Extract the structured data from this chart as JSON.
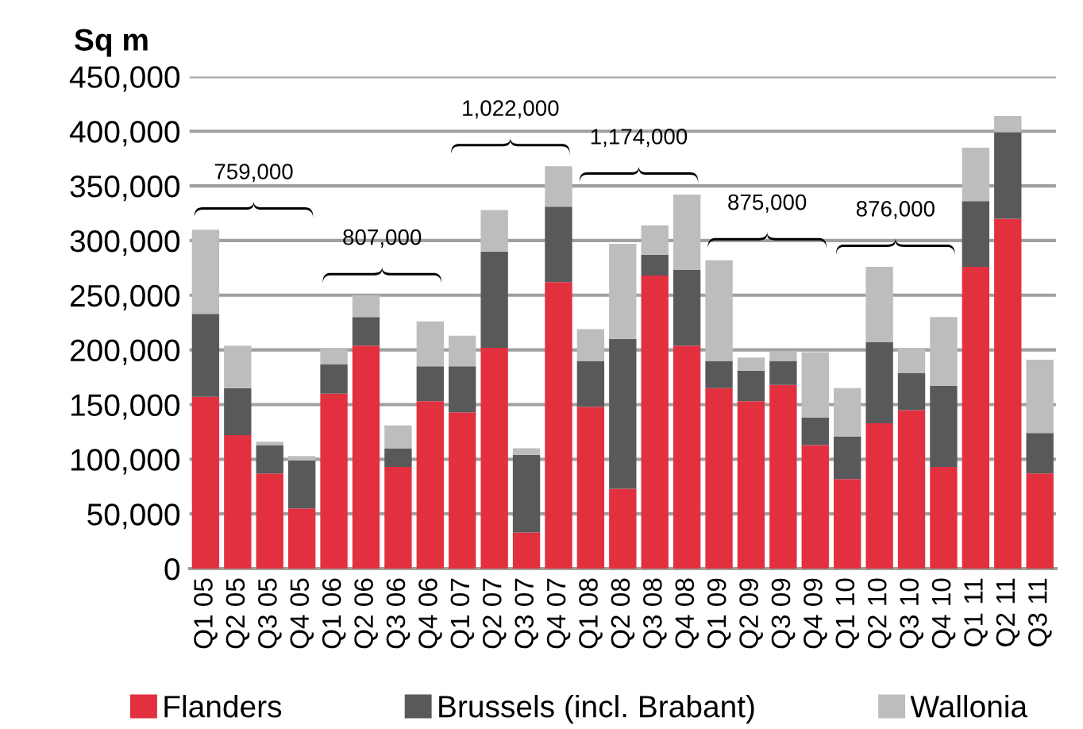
{
  "chart_data": {
    "type": "bar",
    "stacked": true,
    "ylabel": "Sq m",
    "categories": [
      "Q1 05",
      "Q2 05",
      "Q3 05",
      "Q4 05",
      "Q1 06",
      "Q2 06",
      "Q3 06",
      "Q4 06",
      "Q1 07",
      "Q2 07",
      "Q3 07",
      "Q4 07",
      "Q1 08",
      "Q2 08",
      "Q3 08",
      "Q4 08",
      "Q1 09",
      "Q2 09",
      "Q3 09",
      "Q4 09",
      "Q1 10",
      "Q2 10",
      "Q3 10",
      "Q4 10",
      "Q1 11",
      "Q2 11",
      "Q3 11"
    ],
    "series": [
      {
        "name": "Flanders",
        "color": "#e3303f",
        "values": [
          157000,
          122000,
          87000,
          55000,
          160000,
          204000,
          93000,
          153000,
          143000,
          202000,
          33000,
          262000,
          148000,
          73000,
          268000,
          204000,
          165000,
          153000,
          168000,
          113000,
          82000,
          133000,
          145000,
          93000,
          276000,
          320000,
          87000
        ]
      },
      {
        "name": "Brussels (incl. Brabant)",
        "color": "#58595b",
        "values": [
          76000,
          43000,
          26000,
          44000,
          27000,
          26000,
          17000,
          32000,
          42000,
          88000,
          71000,
          69000,
          42000,
          137000,
          19000,
          69000,
          25000,
          28000,
          22000,
          25000,
          39000,
          74000,
          34000,
          74000,
          60000,
          79000,
          37000
        ]
      },
      {
        "name": "Wallonia",
        "color": "#bcbdbf",
        "values": [
          77000,
          39000,
          3000,
          4000,
          15000,
          20000,
          21000,
          41000,
          28000,
          38000,
          6000,
          37000,
          29000,
          87000,
          27000,
          69000,
          92000,
          12000,
          9000,
          60000,
          44000,
          69000,
          23000,
          63000,
          49000,
          15000,
          67000
        ]
      }
    ],
    "ylim": [
      0,
      450000
    ],
    "yticks": [
      {
        "value": 0,
        "label": "0"
      },
      {
        "value": 50000,
        "label": "50,000"
      },
      {
        "value": 100000,
        "label": "100,000"
      },
      {
        "value": 150000,
        "label": "150,000"
      },
      {
        "value": 200000,
        "label": "200,000"
      },
      {
        "value": 250000,
        "label": "250,000"
      },
      {
        "value": 300000,
        "label": "300,000"
      },
      {
        "value": 350000,
        "label": "350,000"
      },
      {
        "value": 400000,
        "label": "400,000"
      },
      {
        "value": 450000,
        "label": "450,000"
      }
    ],
    "grid": "y",
    "legend": "bottom",
    "annotations": [
      "759,000",
      "807,000",
      "1,022,000",
      "1,174,000",
      "875,000",
      "876,000"
    ]
  }
}
